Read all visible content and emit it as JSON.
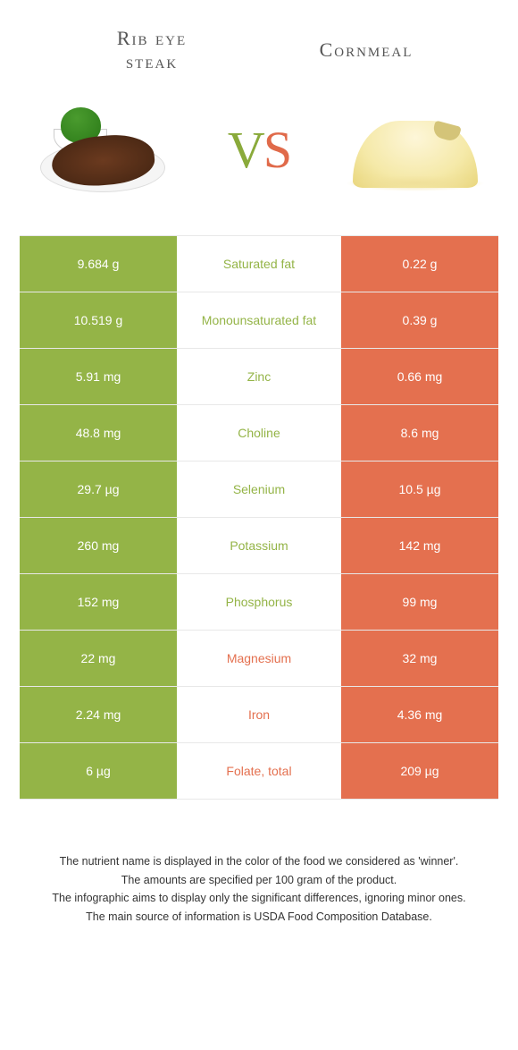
{
  "colors": {
    "left_bg": "#94b447",
    "right_bg": "#e4704f",
    "left_text": "#94b447",
    "right_text": "#e4704f",
    "cell_text": "#ffffff",
    "title_text": "#555555",
    "footer_text": "#333333",
    "row_border": "#e8e8e8"
  },
  "header": {
    "left_title_line1": "Rib eye",
    "left_title_line2": "steak",
    "right_title": "Cornmeal",
    "vs_v": "V",
    "vs_s": "S"
  },
  "rows": [
    {
      "left": "9.684 g",
      "label": "Saturated fat",
      "right": "0.22 g",
      "winner": "left"
    },
    {
      "left": "10.519 g",
      "label": "Monounsaturated fat",
      "right": "0.39 g",
      "winner": "left"
    },
    {
      "left": "5.91 mg",
      "label": "Zinc",
      "right": "0.66 mg",
      "winner": "left"
    },
    {
      "left": "48.8 mg",
      "label": "Choline",
      "right": "8.6 mg",
      "winner": "left"
    },
    {
      "left": "29.7 µg",
      "label": "Selenium",
      "right": "10.5 µg",
      "winner": "left"
    },
    {
      "left": "260 mg",
      "label": "Potassium",
      "right": "142 mg",
      "winner": "left"
    },
    {
      "left": "152 mg",
      "label": "Phosphorus",
      "right": "99 mg",
      "winner": "left"
    },
    {
      "left": "22 mg",
      "label": "Magnesium",
      "right": "32 mg",
      "winner": "right"
    },
    {
      "left": "2.24 mg",
      "label": "Iron",
      "right": "4.36 mg",
      "winner": "right"
    },
    {
      "left": "6 µg",
      "label": "Folate, total",
      "right": "209 µg",
      "winner": "right"
    }
  ],
  "footer": {
    "line1": "The nutrient name is displayed in the color of the food we considered as 'winner'.",
    "line2": "The amounts are specified per 100 gram of the product.",
    "line3": "The infographic aims to display only the significant differences, ignoring minor ones.",
    "line4": "The main source of information is USDA Food Composition Database."
  }
}
